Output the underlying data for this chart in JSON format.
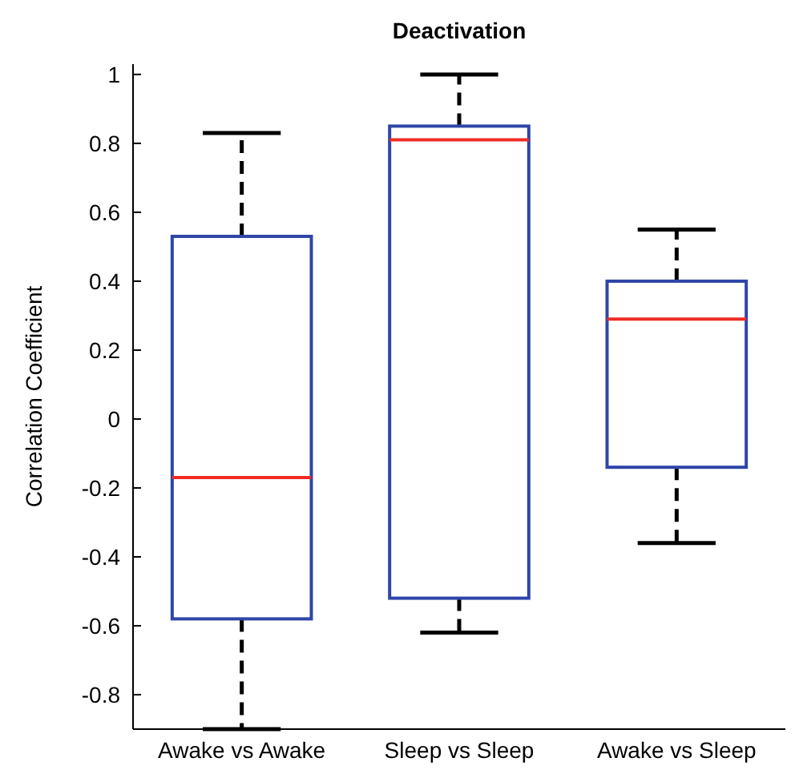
{
  "chart_data": {
    "type": "box",
    "title": "Deactivation",
    "ylabel": "Correlation Coefficient",
    "categories": [
      "Awake vs Awake",
      "Sleep vs Sleep",
      "Awake vs Sleep"
    ],
    "boxes": [
      {
        "low": -0.9,
        "q1": -0.58,
        "median": -0.17,
        "q3": 0.53,
        "high": 0.83
      },
      {
        "low": -0.62,
        "q1": -0.52,
        "median": 0.81,
        "q3": 0.85,
        "high": 1.0
      },
      {
        "low": -0.36,
        "q1": -0.14,
        "median": 0.29,
        "q3": 0.4,
        "high": 0.55
      }
    ],
    "color": "#2e45a8",
    "line_style": "dashed",
    "ylim": [
      -0.9,
      1.03
    ],
    "yticks": [
      -0.8,
      -0.6,
      -0.4,
      -0.2,
      0,
      0.2,
      0.4,
      0.6,
      0.8,
      1
    ],
    "grid": false
  }
}
